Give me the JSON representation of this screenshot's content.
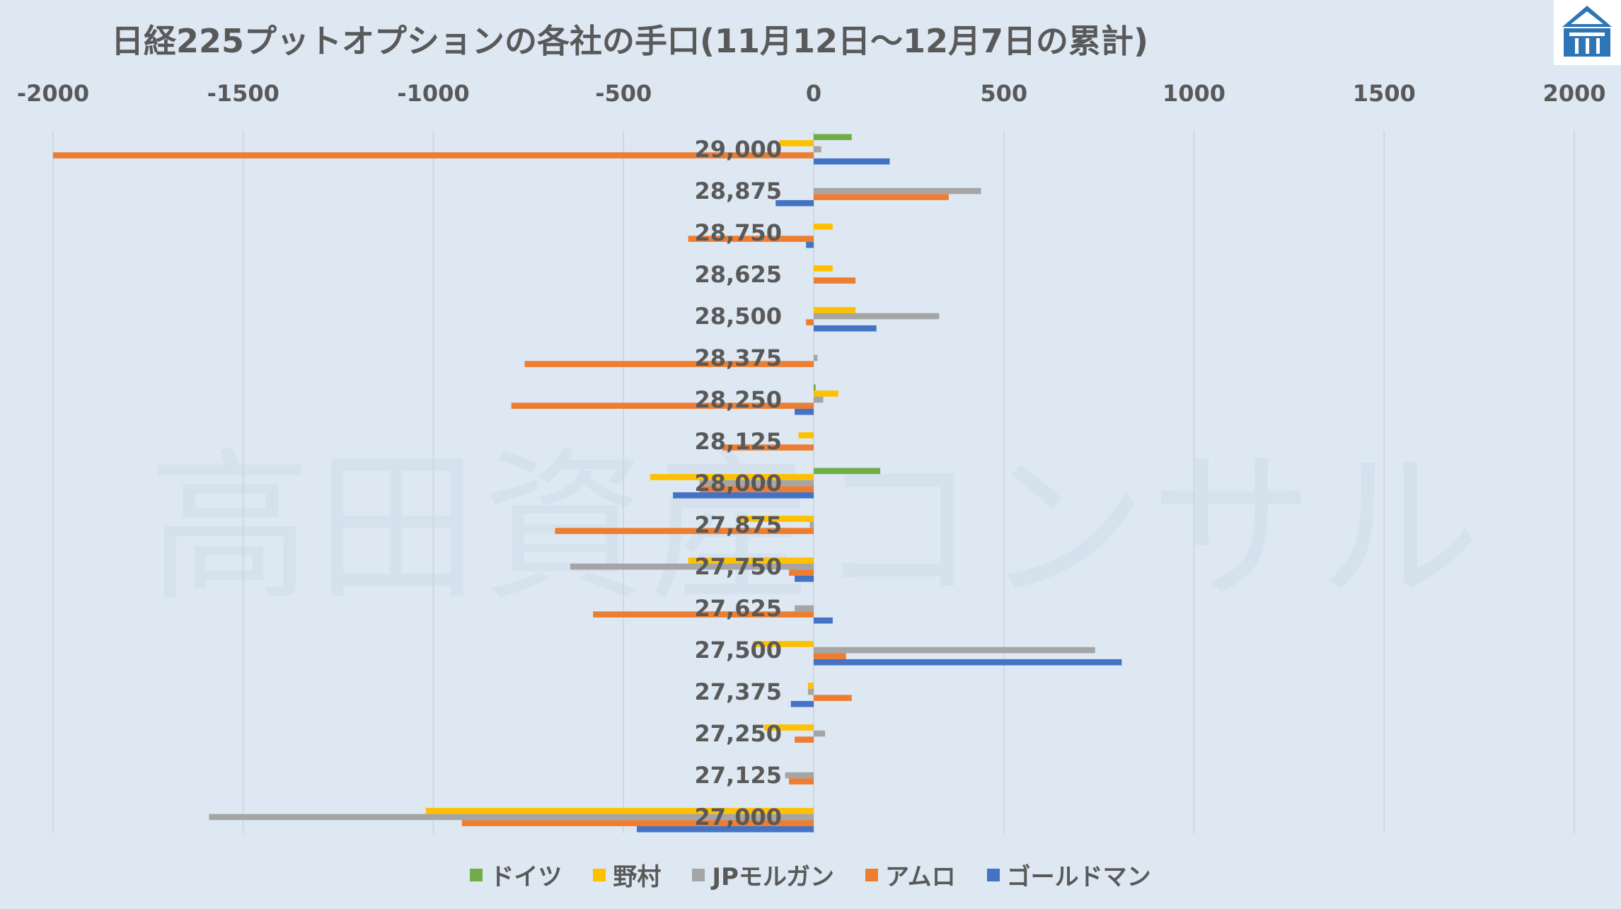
{
  "chart_data": {
    "type": "bar",
    "orientation": "horizontal",
    "title": "日経225プットオプションの各社の手口(11月12日～12月7日の累計)",
    "watermark": "高田資産コンサル",
    "xlim": [
      -2000,
      2000
    ],
    "xticks": [
      "-2000",
      "-1500",
      "-1000",
      "-500",
      "0",
      "500",
      "1000",
      "1500",
      "2000"
    ],
    "xtick_values": [
      -2000,
      -1500,
      -1000,
      -500,
      0,
      500,
      1000,
      1500,
      2000
    ],
    "grid": true,
    "legend_position": "bottom",
    "categories": [
      "29,000",
      "28,875",
      "28,750",
      "28,625",
      "28,500",
      "28,375",
      "28,250",
      "28,125",
      "28,000",
      "27,875",
      "27,750",
      "27,625",
      "27,500",
      "27,375",
      "27,250",
      "27,125",
      "27,000"
    ],
    "series": [
      {
        "name": "ドイツ",
        "color": "#70ad47",
        "values": [
          100,
          0,
          0,
          0,
          0,
          0,
          5,
          0,
          175,
          0,
          0,
          0,
          0,
          0,
          0,
          0,
          0
        ]
      },
      {
        "name": "野村",
        "color": "#ffc000",
        "values": [
          -90,
          0,
          50,
          50,
          110,
          0,
          65,
          -40,
          -430,
          -200,
          -330,
          0,
          -160,
          -15,
          -130,
          0,
          -1020
        ]
      },
      {
        "name": "JPモルガン",
        "color": "#a5a5a5",
        "values": [
          20,
          440,
          0,
          0,
          330,
          10,
          25,
          0,
          -300,
          -10,
          -640,
          -50,
          740,
          -15,
          30,
          -75,
          -1590
        ]
      },
      {
        "name": "アムロ",
        "color": "#ed7d31",
        "values": [
          -2000,
          355,
          -330,
          110,
          -20,
          -760,
          -795,
          -240,
          -300,
          -680,
          -65,
          -580,
          85,
          100,
          -50,
          -65,
          -925
        ]
      },
      {
        "name": "ゴールドマン",
        "color": "#4472c4",
        "values": [
          200,
          -100,
          -20,
          0,
          165,
          0,
          -50,
          0,
          -370,
          0,
          -50,
          50,
          810,
          -60,
          0,
          0,
          -465
        ]
      }
    ]
  }
}
